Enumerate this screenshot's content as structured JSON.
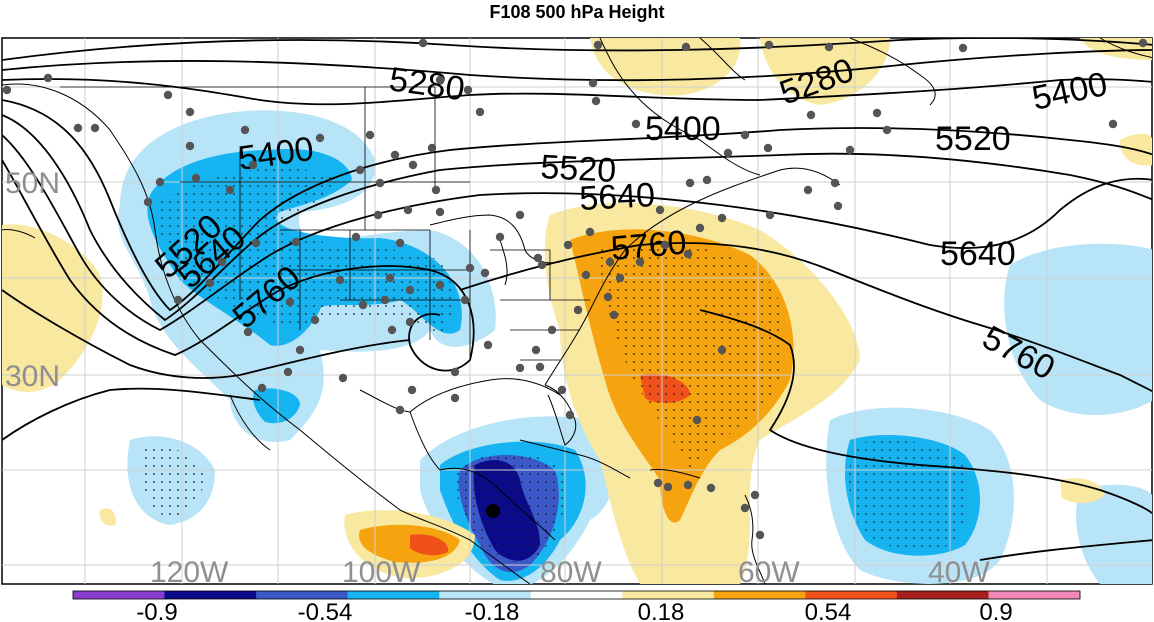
{
  "title": "F108 500 hPa Height",
  "latitude_labels": [
    "50N",
    "30N"
  ],
  "longitude_labels": [
    "120W",
    "100W",
    "80W",
    "60W",
    "40W"
  ],
  "height_contour_labels": [
    "5280",
    "5400",
    "5520",
    "5640",
    "5760"
  ],
  "colorbar": {
    "tick_labels": [
      "-0.9",
      "-0.54",
      "-0.18",
      "0.18",
      "0.54",
      "0.9"
    ],
    "colors": [
      "#8a3ccf",
      "#0a0a8a",
      "#3a58c8",
      "#16b4f0",
      "#b8e4f8",
      "#ffffff",
      "#f8e8a0",
      "#f5a30f",
      "#f0501a",
      "#a8201c",
      "#f088b8"
    ]
  },
  "colors": {
    "light_blue": "#b8e4f8",
    "blue": "#16b4f0",
    "mid_blue": "#3a58c8",
    "dark_blue": "#0a0a8a",
    "light_yellow": "#f8e8a0",
    "orange": "#f5a30f",
    "red_orange": "#f0501a",
    "station_dot": "#555555"
  }
}
